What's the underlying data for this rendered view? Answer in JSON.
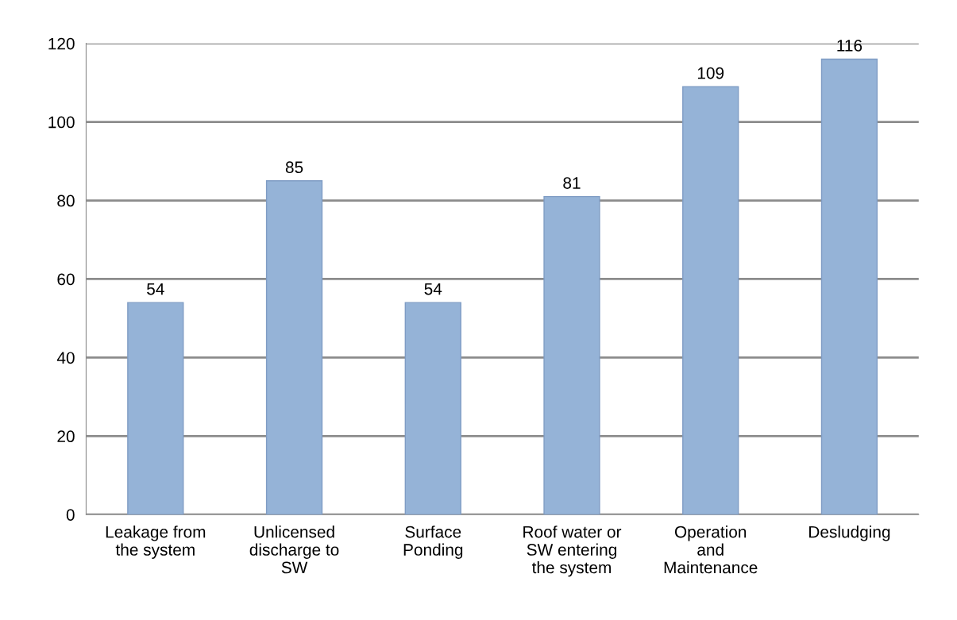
{
  "chart_data": {
    "type": "bar",
    "categories": [
      "Leakage from\nthe system",
      "Unlicensed\ndischarge to\nSW",
      "Surface\nPonding",
      "Roof water or\nSW entering\nthe system",
      "Operation\nand\nMaintenance",
      "Desludging"
    ],
    "values": [
      54,
      85,
      54,
      81,
      109,
      116
    ],
    "color": "#95b3d7",
    "ylim": [
      0,
      120
    ],
    "yticks": [
      0,
      20,
      40,
      60,
      80,
      100,
      120
    ],
    "grid": "y",
    "data_labels": true
  }
}
